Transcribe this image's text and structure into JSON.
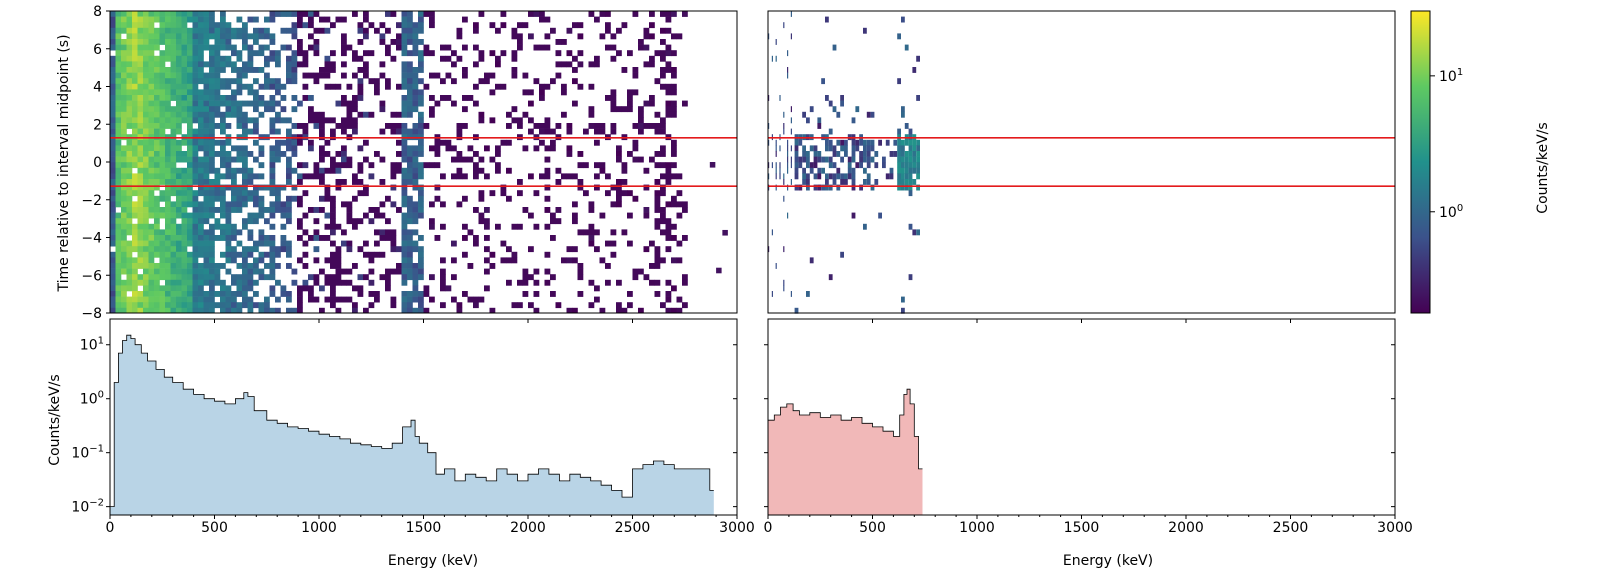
{
  "colors": {
    "background_panel": "#d62728",
    "signal_panel": "#d62728",
    "background_fill": "#b9d4e6",
    "signal_fill": "#f1b8b8",
    "interval_lines": "#e41a1c",
    "colormap": [
      "#440154",
      "#3b528b",
      "#21918c",
      "#5ec962",
      "#fde725"
    ]
  },
  "chart_data": [
    {
      "id": "waterfall-background",
      "type": "heatmap",
      "xlim": [
        0,
        3000
      ],
      "ylim": [
        -8,
        8
      ],
      "ylabel": "Time relative to interval midpoint (s)",
      "y_ticks": [
        "8",
        "6",
        "4",
        "2",
        "0",
        "−2",
        "−4",
        "−6",
        "−8"
      ],
      "interval_lines_y": [
        1.28,
        -1.28
      ],
      "extent_kev": 2750,
      "description_levels": "counts/keV/s per cell, peaking ~20 near 100 keV, ~0.2 at high energy"
    },
    {
      "id": "waterfall-signal",
      "type": "heatmap",
      "xlim": [
        0,
        3000
      ],
      "ylim": [
        -8,
        8
      ],
      "interval_lines_y": [
        1.28,
        -1.28
      ],
      "peak_energy_kev": 662,
      "extent_kev": 720
    },
    {
      "id": "spectrum-background",
      "type": "area",
      "xlim": [
        0,
        3000
      ],
      "ylim": [
        0.007,
        30
      ],
      "yscale": "log",
      "xlabel": "Energy (keV)",
      "ylabel": "Counts/keV/s",
      "x_ticks": [
        "0",
        "500",
        "1000",
        "1500",
        "2000",
        "2500",
        "3000"
      ],
      "y_ticks": [
        {
          "base": "10",
          "exp": "1",
          "value": 10
        },
        {
          "base": "10",
          "exp": "0",
          "value": 1
        },
        {
          "base": "10",
          "exp": "−1",
          "value": 0.1
        },
        {
          "base": "10",
          "exp": "−2",
          "value": 0.01
        }
      ],
      "x": [
        0,
        20,
        40,
        60,
        80,
        100,
        120,
        150,
        180,
        220,
        260,
        300,
        350,
        400,
        450,
        500,
        550,
        600,
        640,
        660,
        690,
        750,
        800,
        850,
        900,
        950,
        1000,
        1050,
        1100,
        1150,
        1200,
        1250,
        1300,
        1350,
        1400,
        1440,
        1460,
        1480,
        1520,
        1560,
        1600,
        1650,
        1700,
        1750,
        1800,
        1850,
        1900,
        1950,
        2000,
        2050,
        2100,
        2150,
        2200,
        2250,
        2300,
        2350,
        2400,
        2450,
        2500,
        2550,
        2600,
        2650,
        2700,
        2870
      ],
      "y": [
        0.01,
        2.0,
        7.0,
        12,
        15,
        13,
        10,
        7,
        5,
        3.5,
        2.5,
        2.0,
        1.5,
        1.2,
        1.0,
        0.9,
        0.8,
        1.0,
        1.3,
        1.1,
        0.6,
        0.4,
        0.35,
        0.3,
        0.28,
        0.25,
        0.22,
        0.2,
        0.18,
        0.15,
        0.14,
        0.13,
        0.12,
        0.15,
        0.3,
        0.4,
        0.2,
        0.15,
        0.1,
        0.04,
        0.05,
        0.03,
        0.04,
        0.035,
        0.03,
        0.05,
        0.04,
        0.03,
        0.04,
        0.05,
        0.04,
        0.03,
        0.04,
        0.035,
        0.03,
        0.025,
        0.02,
        0.015,
        0.05,
        0.06,
        0.07,
        0.06,
        0.05,
        0.02
      ]
    },
    {
      "id": "spectrum-signal",
      "type": "area",
      "xlim": [
        0,
        3000
      ],
      "ylim": [
        0.007,
        30
      ],
      "yscale": "log",
      "xlabel": "Energy (keV)",
      "x_ticks": [
        "0",
        "500",
        "1000",
        "1500",
        "2000",
        "2500",
        "3000"
      ],
      "x": [
        0,
        30,
        60,
        90,
        120,
        150,
        200,
        250,
        300,
        350,
        400,
        450,
        500,
        550,
        600,
        630,
        650,
        665,
        680,
        700,
        720
      ],
      "y": [
        0.4,
        0.5,
        0.7,
        0.8,
        0.6,
        0.5,
        0.55,
        0.45,
        0.5,
        0.4,
        0.45,
        0.35,
        0.3,
        0.25,
        0.2,
        0.5,
        1.2,
        1.5,
        0.8,
        0.2,
        0.05
      ]
    }
  ],
  "colorbar": {
    "label": "Counts/keV/s",
    "ticks": [
      {
        "base": "10",
        "exp": "1",
        "value": 10
      },
      {
        "base": "10",
        "exp": "0",
        "value": 1
      }
    ],
    "range": [
      0.18,
      30
    ],
    "scale": "log"
  }
}
